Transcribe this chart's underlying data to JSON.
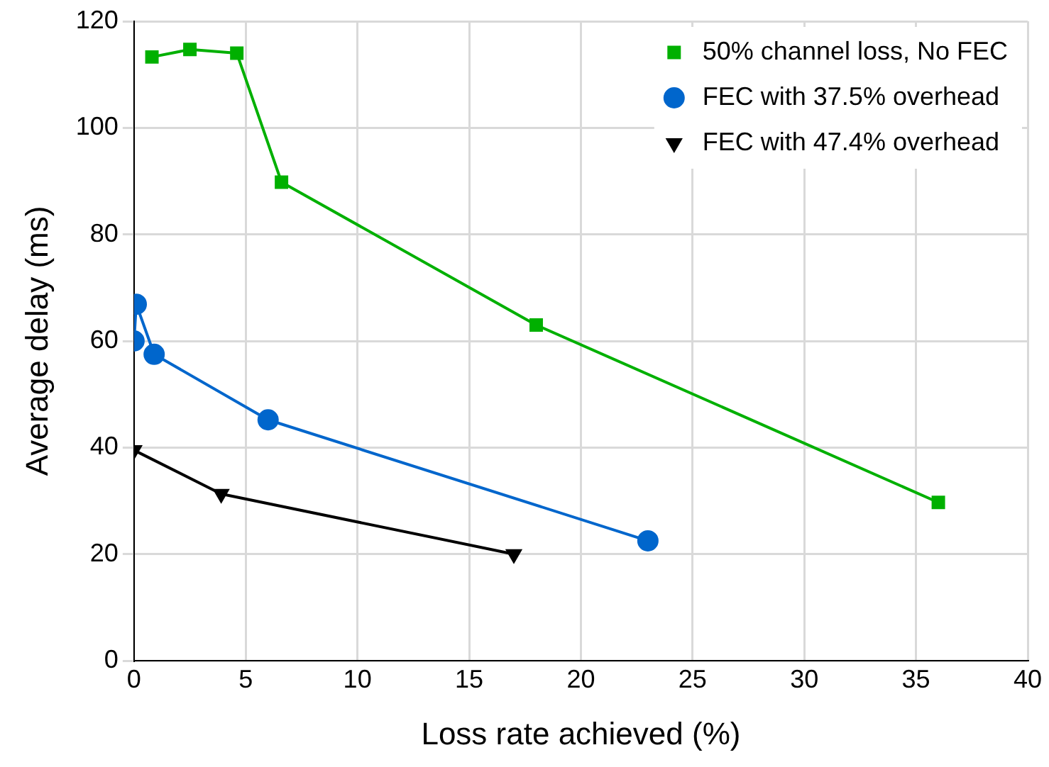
{
  "chart_data": {
    "type": "line",
    "xlabel": "Loss rate achieved (%)",
    "ylabel": "Average delay (ms)",
    "xlim": [
      0,
      40
    ],
    "xticks": [
      0,
      5,
      10,
      15,
      20,
      25,
      30,
      35,
      40
    ],
    "ylim": [
      0,
      120
    ],
    "yticks": [
      0,
      20,
      40,
      60,
      80,
      100,
      120
    ],
    "grid": true,
    "legend": "top right",
    "series": [
      {
        "name": "50% channel loss, No FEC",
        "color": "#00b000",
        "marker": "square",
        "x": [
          0.8,
          2.5,
          4.6,
          6.6,
          18,
          36
        ],
        "values": [
          113.3,
          114.7,
          114,
          89.8,
          63,
          29.7
        ]
      },
      {
        "name": "FEC with 37.5% overhead",
        "color": "#0066cc",
        "marker": "circle",
        "x": [
          0,
          0.1,
          0.9,
          6,
          23
        ],
        "values": [
          60,
          66.9,
          57.5,
          45.2,
          22.5
        ]
      },
      {
        "name": "FEC with 47.4% overhead",
        "color": "#000000",
        "marker": "triangle",
        "x": [
          0,
          3.9,
          17
        ],
        "values": [
          39.5,
          31.3,
          20
        ]
      }
    ]
  }
}
